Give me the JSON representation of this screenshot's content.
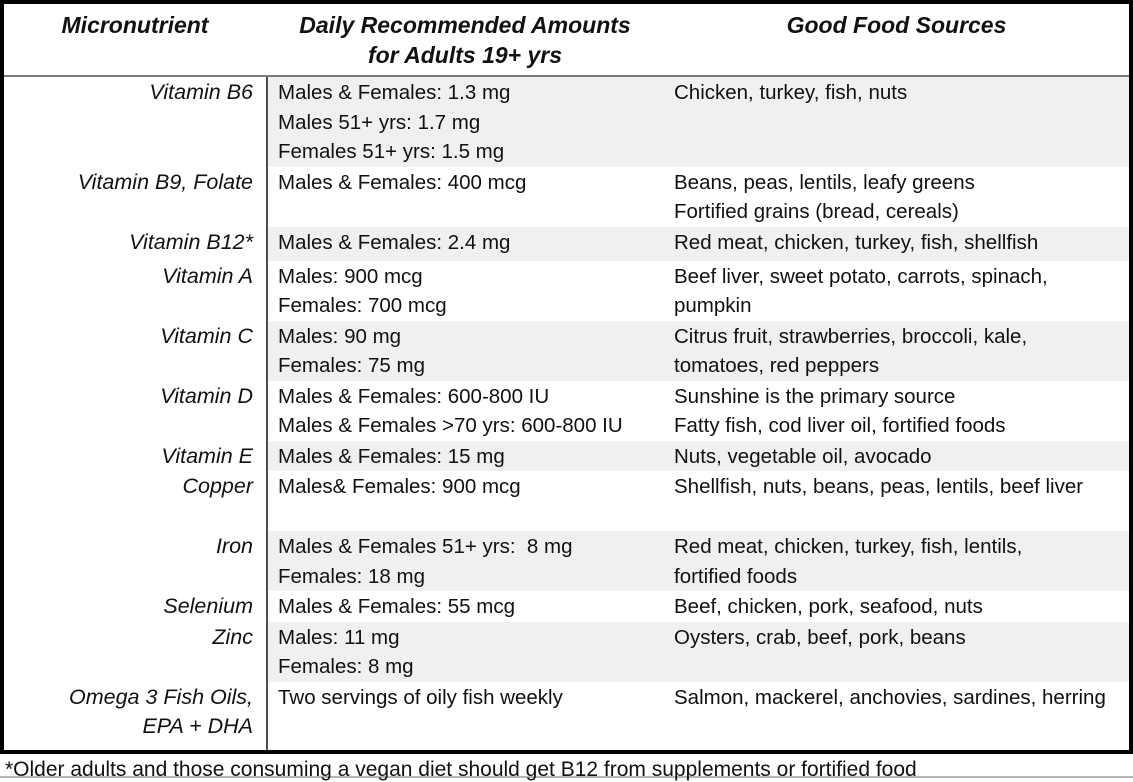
{
  "table": {
    "headers": {
      "micronutrient": "Micronutrient",
      "amounts": "Daily Recommended Amounts\nfor Adults 19+ yrs",
      "sources": "Good Food Sources"
    },
    "rows": [
      {
        "nutrient": "Vitamin B6",
        "amounts": "Males & Females: 1.3 mg\nMales 51+ yrs: 1.7 mg\nFemales 51+ yrs: 1.5 mg",
        "sources": "Chicken, turkey, fish, nuts",
        "shaded": true
      },
      {
        "nutrient": "Vitamin B9, Folate",
        "amounts": "Males & Females: 400 mcg",
        "sources": "Beans, peas, lentils, leafy greens\nFortified grains (bread, cereals)",
        "shaded": false
      },
      {
        "nutrient": "Vitamin B12*",
        "amounts": "Males & Females: 2.4 mg",
        "sources": "Red meat, chicken, turkey, fish, shellfish",
        "shaded": true
      },
      {
        "nutrient": "Vitamin A",
        "amounts": "Males: 900 mcg\nFemales: 700 mcg",
        "sources": "Beef liver, sweet potato, carrots, spinach,\npumpkin",
        "shaded": false
      },
      {
        "nutrient": "Vitamin C",
        "amounts": "Males: 90 mg\nFemales: 75 mg",
        "sources": "Citrus fruit, strawberries, broccoli, kale,\ntomatoes, red peppers",
        "shaded": true
      },
      {
        "nutrient": "Vitamin D",
        "amounts": "Males & Females: 600-800 IU\nMales & Females >70 yrs: 600-800 IU",
        "sources": "Sunshine is the primary source\nFatty fish, cod liver oil, fortified foods",
        "shaded": false
      },
      {
        "nutrient": "Vitamin E",
        "amounts": "Males & Females: 15 mg",
        "sources": "Nuts, vegetable oil, avocado",
        "shaded": true
      },
      {
        "nutrient": "Copper",
        "amounts": "Males& Females: 900 mcg",
        "sources": "Shellfish, nuts, beans, peas, lentils, beef liver",
        "shaded": false
      },
      {
        "nutrient": "Iron",
        "amounts": "Males & Females 51+ yrs:  8 mg\nFemales: 18 mg",
        "sources": "Red meat, chicken, turkey, fish, lentils,\nfortified foods",
        "shaded": true
      },
      {
        "nutrient": "Selenium",
        "amounts": "Males & Females: 55 mcg",
        "sources": "Beef, chicken, pork, seafood, nuts",
        "shaded": false
      },
      {
        "nutrient": "Zinc",
        "amounts": "Males: 11 mg\nFemales: 8 mg",
        "sources": "Oysters, crab, beef, pork, beans",
        "shaded": true
      },
      {
        "nutrient": "Omega 3 Fish Oils,\nEPA + DHA",
        "amounts": "Two servings of oily fish weekly",
        "sources": "Salmon, mackerel, anchovies, sardines, herring",
        "shaded": false
      }
    ]
  },
  "footnote": "*Older adults and those consuming a vegan diet should get B12 from supplements or fortified food",
  "colors": {
    "shaded_row": "#f0f0f0",
    "table_border": "#000000",
    "column_divider": "#4d4d4d",
    "header_separator": "#7a7a7a",
    "text": "#111111"
  }
}
